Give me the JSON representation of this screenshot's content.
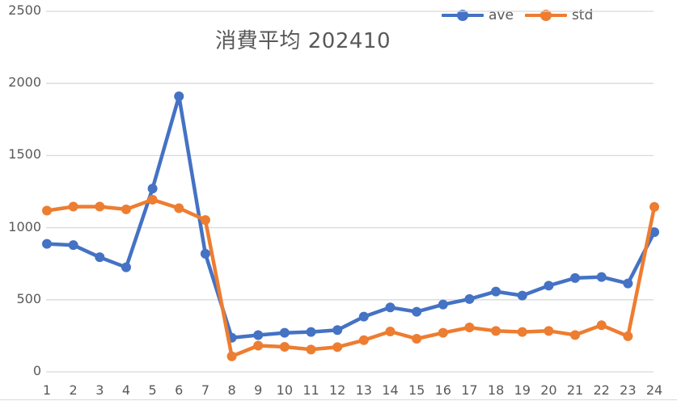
{
  "chart_data": {
    "type": "line",
    "title": "消費平均 202410",
    "xlabel": "",
    "ylabel": "",
    "categories": [
      "1",
      "2",
      "3",
      "4",
      "5",
      "6",
      "7",
      "8",
      "9",
      "10",
      "11",
      "12",
      "13",
      "14",
      "15",
      "16",
      "17",
      "18",
      "19",
      "20",
      "21",
      "22",
      "23",
      "24"
    ],
    "series": [
      {
        "name": "ave",
        "color": "#4472C4",
        "values": [
          888,
          879,
          795,
          725,
          1271,
          1911,
          819,
          237,
          255,
          271,
          277,
          290,
          383,
          447,
          417,
          467,
          505,
          557,
          529,
          598,
          651,
          658,
          613,
          969
        ]
      },
      {
        "name": "std",
        "color": "#ED7D31",
        "values": [
          1118,
          1146,
          1146,
          1127,
          1194,
          1135,
          1053,
          108,
          182,
          174,
          155,
          172,
          220,
          280,
          230,
          271,
          308,
          284,
          277,
          284,
          256,
          324,
          247,
          1144
        ]
      }
    ],
    "ylim": [
      0,
      2500
    ],
    "yticks": [
      "0",
      "500",
      "1000",
      "1500",
      "2000",
      "2500"
    ],
    "grid": true,
    "legend_position": "top-right",
    "markers": true
  },
  "legend": {
    "items": [
      {
        "label": "ave",
        "color": "#4472C4"
      },
      {
        "label": "std",
        "color": "#ED7D31"
      }
    ]
  },
  "colors": {
    "text": "#595959",
    "gridline": "#D9D9D9",
    "background": "#FFFFFF"
  }
}
